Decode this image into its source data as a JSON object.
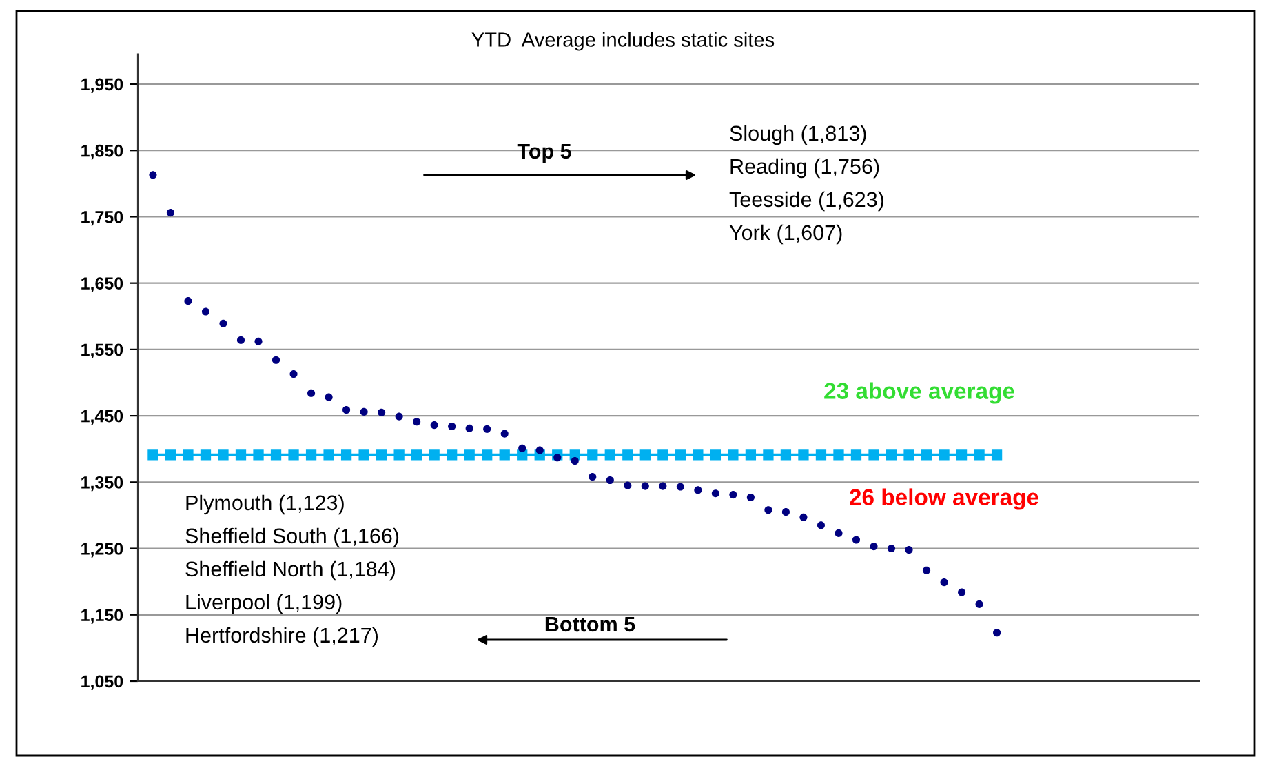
{
  "chart_data": {
    "type": "scatter",
    "title": "YTD  Average includes static sites",
    "categories": [
      null,
      null,
      null,
      null,
      null,
      null,
      null,
      null,
      null,
      null,
      null,
      null,
      null,
      null,
      null,
      null,
      null,
      null,
      null,
      null,
      null,
      null,
      null,
      null,
      null,
      null,
      null,
      null,
      null,
      null,
      null,
      null,
      null,
      null,
      null,
      null,
      null,
      null,
      null,
      null,
      null,
      null,
      null,
      null,
      null,
      null,
      null,
      null,
      null
    ],
    "series": [
      {
        "color": "#000080",
        "marker": "circle",
        "values": [
          1813,
          1756,
          1623,
          1607,
          1589,
          1564,
          1562,
          1534,
          1513,
          1484,
          1478,
          1459,
          1456,
          1455,
          1449,
          1441,
          1436,
          1434,
          1431,
          1430,
          1423,
          1401,
          1398,
          1387,
          1382,
          1358,
          1353,
          1345,
          1344,
          1344,
          1343,
          1338,
          1333,
          1331,
          1327,
          1308,
          1305,
          1297,
          1285,
          1273,
          1263,
          1253,
          1250,
          1248,
          1217,
          1199,
          1184,
          1166,
          1123
        ]
      },
      {
        "type": "line",
        "color": "#00b0f0",
        "marker": "square",
        "line_style": "solid",
        "values": [
          1391,
          1391,
          1391,
          1391,
          1391,
          1391,
          1391,
          1391,
          1391,
          1391,
          1391,
          1391,
          1391,
          1391,
          1391,
          1391,
          1391,
          1391,
          1391,
          1391,
          1391,
          1391,
          1391,
          1391,
          1391,
          1391,
          1391,
          1391,
          1391,
          1391,
          1391,
          1391,
          1391,
          1391,
          1391,
          1391,
          1391,
          1391,
          1391,
          1391,
          1391,
          1391,
          1391,
          1391,
          1391,
          1391,
          1391,
          1391,
          1391
        ]
      }
    ],
    "ylim": [
      1050,
      1995
    ],
    "yticks": [
      {
        "value": 1050,
        "label": "1,050"
      },
      {
        "value": 1150,
        "label": "1,150"
      },
      {
        "value": 1250,
        "label": "1,250"
      },
      {
        "value": 1350,
        "label": "1,350"
      },
      {
        "value": 1450,
        "label": "1,450"
      },
      {
        "value": 1550,
        "label": "1,550"
      },
      {
        "value": 1650,
        "label": "1,650"
      },
      {
        "value": 1750,
        "label": "1,750"
      },
      {
        "value": 1850,
        "label": "1,850"
      },
      {
        "value": 1950,
        "label": "1,950"
      }
    ],
    "grid": "y",
    "annotations": [
      "Top 5",
      "Slough (1,813)",
      "Reading (1,756)",
      "Teesside (1,623)",
      "York (1,607)",
      "23 above average",
      "26 below average",
      "Plymouth (1,123)",
      "Sheffield South (1,166)",
      "Sheffield North (1,184)",
      "Liverpool (1,199)",
      "Hertfordshire (1,217)",
      "Bottom 5"
    ]
  }
}
